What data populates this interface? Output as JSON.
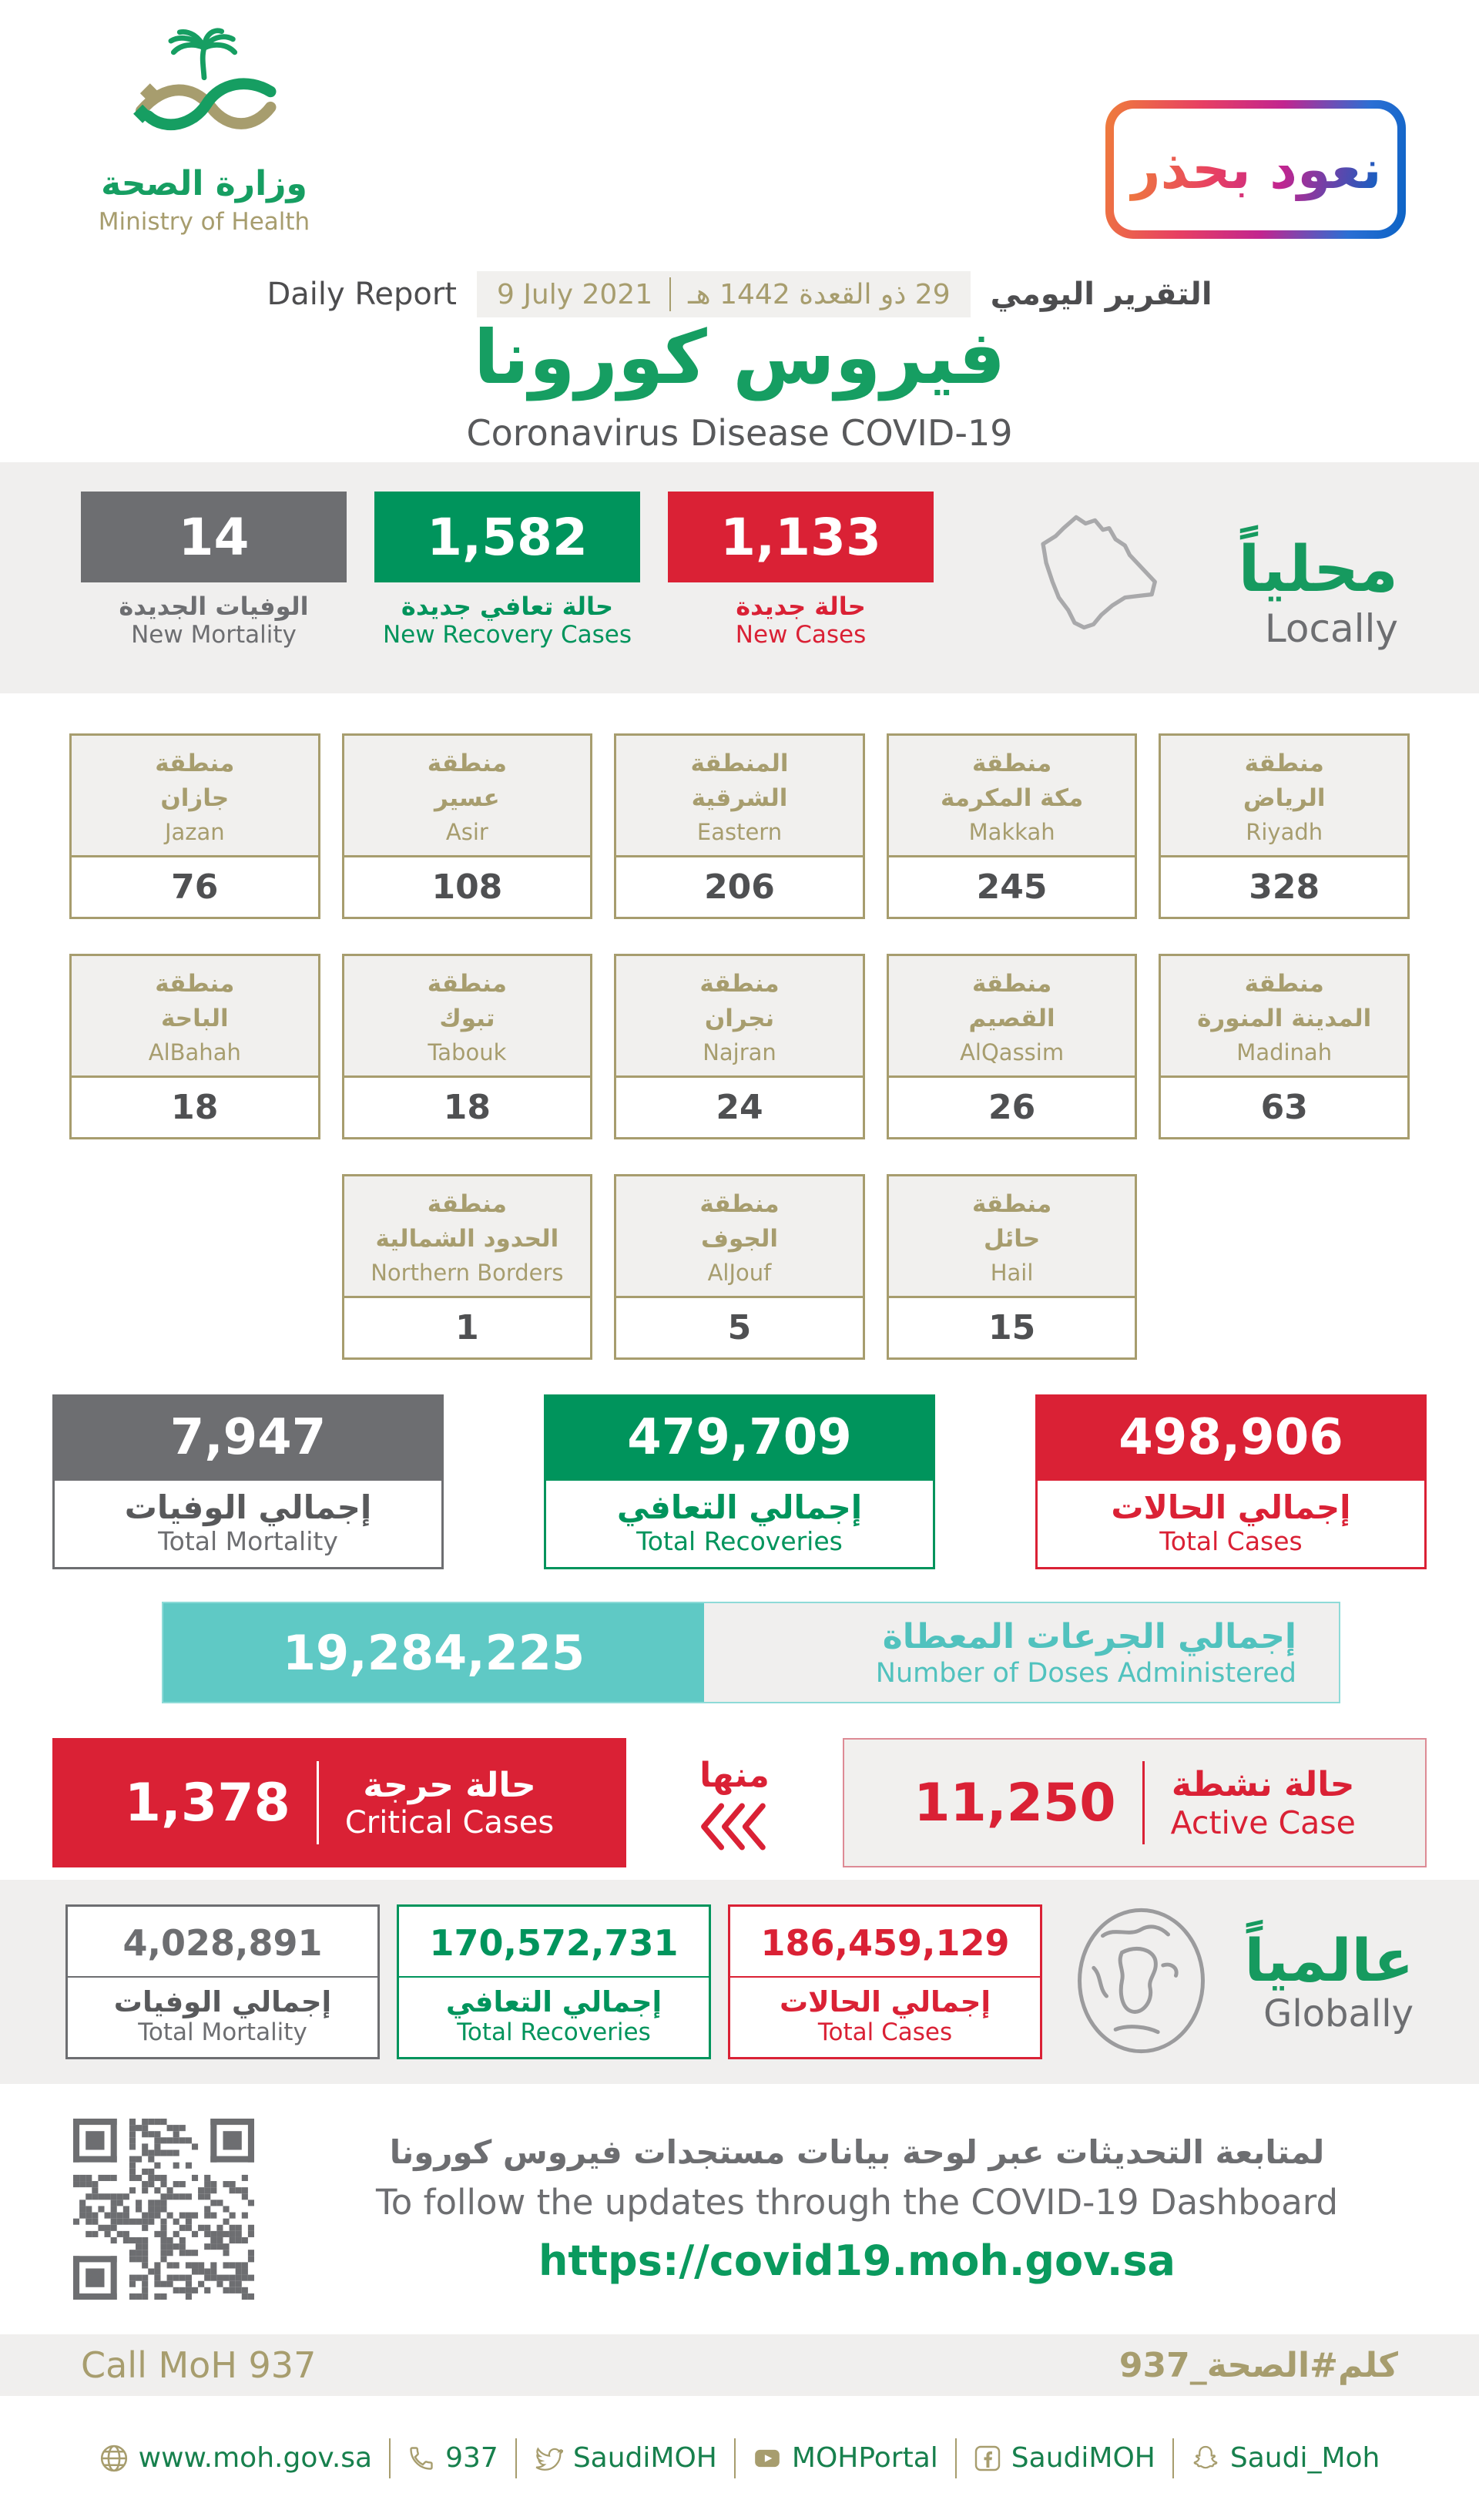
{
  "colors": {
    "green": "#00945c",
    "title_green": "#169e62",
    "red": "#da2135",
    "gray": "#6d6e71",
    "gold": "#a79d6e",
    "teal": "#5fc9c5",
    "band_gray": "#f0efee"
  },
  "header": {
    "logo_ar": "وزارة الصحة",
    "logo_en": "Ministry of Health",
    "badge": "نعود بحذر",
    "report_en": "Daily Report",
    "date_greg": "9 July 2021",
    "date_hijri": "29 ذو القعدة 1442 هـ",
    "report_ar": "التقرير اليومي",
    "title_ar": "فيروس كورونا",
    "title_en": "Coronavirus Disease COVID-19"
  },
  "locally": {
    "label_ar": "محلياً",
    "label_en": "Locally",
    "stats": [
      {
        "id": "new-mortality",
        "value": "14",
        "label_ar": "الوفيات الجديدة",
        "label_en": "New Mortality"
      },
      {
        "id": "new-recoveries",
        "value": "1,582",
        "label_ar": "حالة تعافي جديدة",
        "label_en": "New Recovery Cases"
      },
      {
        "id": "new-cases",
        "value": "1,133",
        "label_ar": "حالة جديدة",
        "label_en": "New Cases"
      }
    ]
  },
  "regions": {
    "row1": [
      {
        "ar1": "منطقة",
        "ar2": "جازان",
        "en": "Jazan",
        "value": "76"
      },
      {
        "ar1": "منطقة",
        "ar2": "عسير",
        "en": "Asir",
        "value": "108"
      },
      {
        "ar1": "المنطقة",
        "ar2": "الشرقية",
        "en": "Eastern",
        "value": "206"
      },
      {
        "ar1": "منطقة",
        "ar2": "مكة المكرمة",
        "en": "Makkah",
        "value": "245"
      },
      {
        "ar1": "منطقة",
        "ar2": "الرياض",
        "en": "Riyadh",
        "value": "328"
      }
    ],
    "row2": [
      {
        "ar1": "منطقة",
        "ar2": "الباحة",
        "en": "AlBahah",
        "value": "18"
      },
      {
        "ar1": "منطقة",
        "ar2": "تبوك",
        "en": "Tabouk",
        "value": "18"
      },
      {
        "ar1": "منطقة",
        "ar2": "نجران",
        "en": "Najran",
        "value": "24"
      },
      {
        "ar1": "منطقة",
        "ar2": "القصيم",
        "en": "AlQassim",
        "value": "26"
      },
      {
        "ar1": "منطقة",
        "ar2": "المدينة المنورة",
        "en": "Madinah",
        "value": "63"
      }
    ],
    "row3": [
      {
        "ar1": "منطقة",
        "ar2": "الحدود الشمالية",
        "en": "Northern Borders",
        "value": "1"
      },
      {
        "ar1": "منطقة",
        "ar2": "الجوف",
        "en": "AlJouf",
        "value": "5"
      },
      {
        "ar1": "منطقة",
        "ar2": "حائل",
        "en": "Hail",
        "value": "15"
      }
    ]
  },
  "totals": [
    {
      "value": "7,947",
      "label_ar": "إجمالي الوفيات",
      "label_en": "Total Mortality"
    },
    {
      "value": "479,709",
      "label_ar": "إجمالي التعافي",
      "label_en": "Total Recoveries"
    },
    {
      "value": "498,906",
      "label_ar": "إجمالي الحالات",
      "label_en": "Total Cases"
    }
  ],
  "doses": {
    "value": "19,284,225",
    "label_ar": "إجمالي الجرعات المعطاة",
    "label_en": "Number of Doses Administered"
  },
  "critical": {
    "value": "1,378",
    "label_ar": "حالة حرجة",
    "label_en": "Critical Cases"
  },
  "minha_label": "منها",
  "active": {
    "value": "11,250",
    "label_ar": "حالة نشطة",
    "label_en": "Active Case"
  },
  "globally": {
    "label_ar": "عالمياً",
    "label_en": "Globally",
    "stats": [
      {
        "value": "4,028,891",
        "label_ar": "إجمالي الوفيات",
        "label_en": "Total Mortality"
      },
      {
        "value": "170,572,731",
        "label_ar": "إجمالي التعافي",
        "label_en": "Total Recoveries"
      },
      {
        "value": "186,459,129",
        "label_ar": "إجمالي الحالات",
        "label_en": "Total Cases"
      }
    ]
  },
  "dashboard": {
    "line_ar": "لمتابعة التحديثات عبر لوحة بيانات مستجدات فيروس كورونا",
    "line_en": "To follow the updates through the COVID-19 Dashboard",
    "url": "https://covid19.moh.gov.sa"
  },
  "call_band": {
    "en": "Call MoH 937",
    "ar": "كلم#الصحة_937"
  },
  "footer": {
    "items": [
      {
        "icon": "globe",
        "label": "www.moh.gov.sa"
      },
      {
        "icon": "phone",
        "label": "937"
      },
      {
        "icon": "twitter",
        "label": "SaudiMOH"
      },
      {
        "icon": "youtube",
        "label": "MOHPortal"
      },
      {
        "icon": "facebook",
        "label": "SaudiMOH"
      },
      {
        "icon": "snapchat",
        "label": "Saudi_Moh"
      }
    ]
  }
}
